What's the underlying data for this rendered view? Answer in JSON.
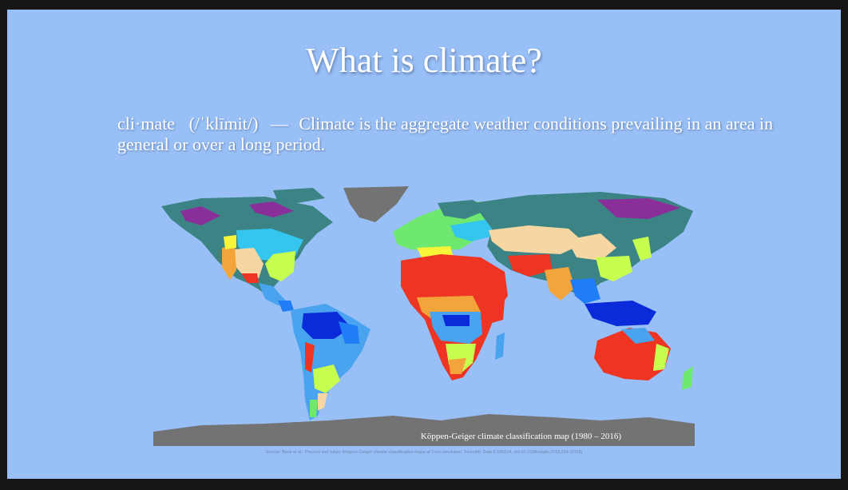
{
  "slide": {
    "title": "What is climate?",
    "definition": {
      "term": "cli·mate",
      "pronunciation": "(/ˈklīmit/)",
      "dash": "—",
      "text": "Climate is the aggregate weather conditions prevailing in an area in general or over a long period."
    },
    "map": {
      "caption": "Köppen-Geiger climate classification map (1980 – 2016)",
      "source": "Source: Beck et al.: Present and future Köppen-Geiger climate classification maps at 1-km resolution. Scientific Data 5:180214, doi:10.1038/sdata.2018.214 (2018)"
    }
  },
  "colors": {
    "slide_background": "#98bff6",
    "frame": "#161616",
    "ocean": "#98bff6",
    "ice": "#737373",
    "tropical_rainforest": "#0a2bd9",
    "tropical_monsoon": "#1f7df5",
    "tropical_savanna": "#4aa3ef",
    "hot_desert": "#ee3524",
    "hot_steppe": "#f3a43a",
    "cold_steppe": "#f6d7a4",
    "mediterranean": "#f8f538",
    "humid_subtropical": "#c7ff50",
    "oceanic": "#6ee86f",
    "humid_continental": "#34c6ee",
    "subarctic": "#3b8385",
    "tundra": "#b1b1b1",
    "subarctic_dry": "#8a2f9a"
  }
}
